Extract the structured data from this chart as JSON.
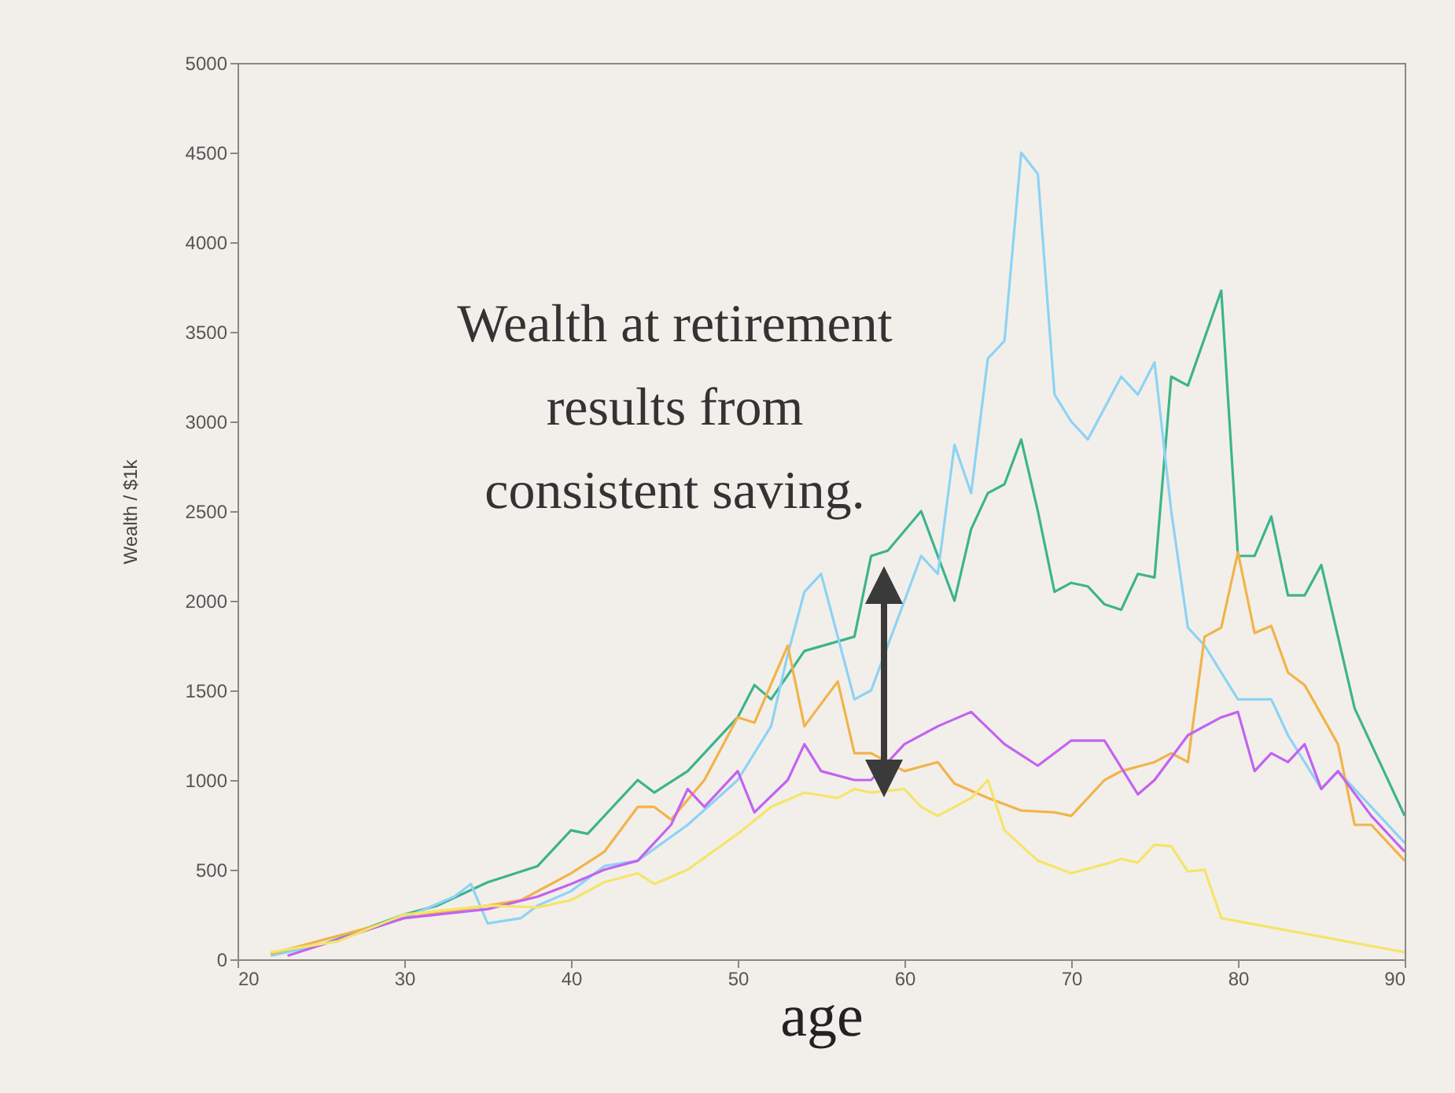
{
  "chart_data": {
    "type": "line",
    "xlabel": "age",
    "ylabel": "Wealth / $1k",
    "xlim": [
      20,
      90
    ],
    "xticks": [
      20,
      30,
      40,
      50,
      60,
      70,
      80,
      90
    ],
    "ylim": [
      0,
      5000
    ],
    "yticks": [
      0,
      500,
      1000,
      1500,
      2000,
      2500,
      3000,
      3500,
      4000,
      4500,
      5000
    ],
    "grid": false,
    "annotations": [
      "Wealth at retirement\nresults from\nconsistent saving."
    ],
    "series": [
      {
        "color": "#3cb48c",
        "x": [
          22,
          25,
          30,
          32,
          35,
          38,
          40,
          41,
          43,
          44,
          45,
          47,
          50,
          51,
          52,
          54,
          57,
          58,
          59,
          61,
          63,
          64,
          65,
          66,
          67,
          68,
          69,
          70,
          71,
          72,
          73,
          74,
          75,
          76,
          77,
          79,
          80,
          81,
          82,
          83,
          84,
          85,
          87,
          88,
          90
        ],
        "values": [
          30,
          80,
          250,
          300,
          430,
          520,
          720,
          700,
          900,
          1000,
          930,
          1050,
          1350,
          1530,
          1450,
          1720,
          1800,
          2250,
          2280,
          2500,
          2000,
          2400,
          2600,
          2650,
          2900,
          2500,
          2050,
          2100,
          2080,
          1980,
          1950,
          2150,
          2130,
          3250,
          3200,
          3730,
          2250,
          2250,
          2470,
          2030,
          2030,
          2200,
          1400,
          1200,
          800
        ]
      },
      {
        "color": "#8dd3f5",
        "x": [
          22,
          25,
          30,
          33,
          34,
          35,
          37,
          38,
          40,
          42,
          44,
          47,
          50,
          52,
          53,
          54,
          55,
          56,
          57,
          58,
          60,
          61,
          62,
          63,
          64,
          65,
          66,
          67,
          68,
          69,
          70,
          71,
          73,
          74,
          75,
          76,
          77,
          78,
          80,
          82,
          83,
          85,
          86,
          88,
          90
        ],
        "values": [
          20,
          80,
          230,
          350,
          420,
          200,
          230,
          300,
          380,
          520,
          550,
          750,
          1000,
          1300,
          1700,
          2050,
          2150,
          1800,
          1450,
          1500,
          2000,
          2250,
          2150,
          2870,
          2600,
          3350,
          3450,
          4500,
          4380,
          3150,
          3000,
          2900,
          3250,
          3150,
          3330,
          2500,
          1850,
          1750,
          1450,
          1450,
          1250,
          950,
          1050,
          850,
          650
        ]
      },
      {
        "color": "#f2b34a",
        "x": [
          22,
          30,
          35,
          37,
          40,
          42,
          44,
          45,
          46,
          48,
          50,
          51,
          53,
          54,
          56,
          57,
          58,
          60,
          62,
          63,
          65,
          67,
          69,
          70,
          72,
          73,
          75,
          76,
          77,
          78,
          79,
          80,
          81,
          82,
          83,
          84,
          86,
          87,
          88,
          90
        ],
        "values": [
          30,
          230,
          300,
          330,
          480,
          600,
          850,
          850,
          780,
          1000,
          1350,
          1320,
          1750,
          1300,
          1550,
          1150,
          1150,
          1050,
          1100,
          980,
          900,
          830,
          820,
          800,
          1000,
          1050,
          1100,
          1150,
          1100,
          1800,
          1850,
          2270,
          1820,
          1860,
          1600,
          1530,
          1200,
          750,
          750,
          550
        ]
      },
      {
        "color": "#c462f0",
        "x": [
          23,
          30,
          35,
          38,
          40,
          42,
          44,
          46,
          47,
          48,
          50,
          51,
          53,
          54,
          55,
          57,
          58,
          60,
          62,
          64,
          66,
          68,
          70,
          72,
          74,
          75,
          77,
          79,
          80,
          81,
          82,
          83,
          84,
          85,
          86,
          88,
          90
        ],
        "values": [
          20,
          230,
          280,
          350,
          420,
          500,
          550,
          750,
          950,
          850,
          1050,
          820,
          1000,
          1200,
          1050,
          1000,
          1000,
          1200,
          1300,
          1380,
          1200,
          1080,
          1220,
          1220,
          920,
          1000,
          1250,
          1350,
          1380,
          1050,
          1150,
          1100,
          1200,
          950,
          1050,
          800,
          600
        ]
      },
      {
        "color": "#f5e46a",
        "x": [
          22,
          26,
          30,
          35,
          38,
          40,
          42,
          44,
          45,
          47,
          50,
          52,
          54,
          56,
          57,
          58,
          60,
          61,
          62,
          64,
          65,
          66,
          68,
          70,
          72,
          73,
          74,
          75,
          76,
          77,
          78,
          79,
          90
        ],
        "values": [
          40,
          100,
          250,
          300,
          290,
          330,
          430,
          480,
          420,
          500,
          700,
          850,
          930,
          900,
          950,
          930,
          950,
          850,
          800,
          900,
          1000,
          720,
          550,
          480,
          530,
          560,
          540,
          640,
          630,
          490,
          500,
          230,
          40
        ]
      }
    ]
  }
}
